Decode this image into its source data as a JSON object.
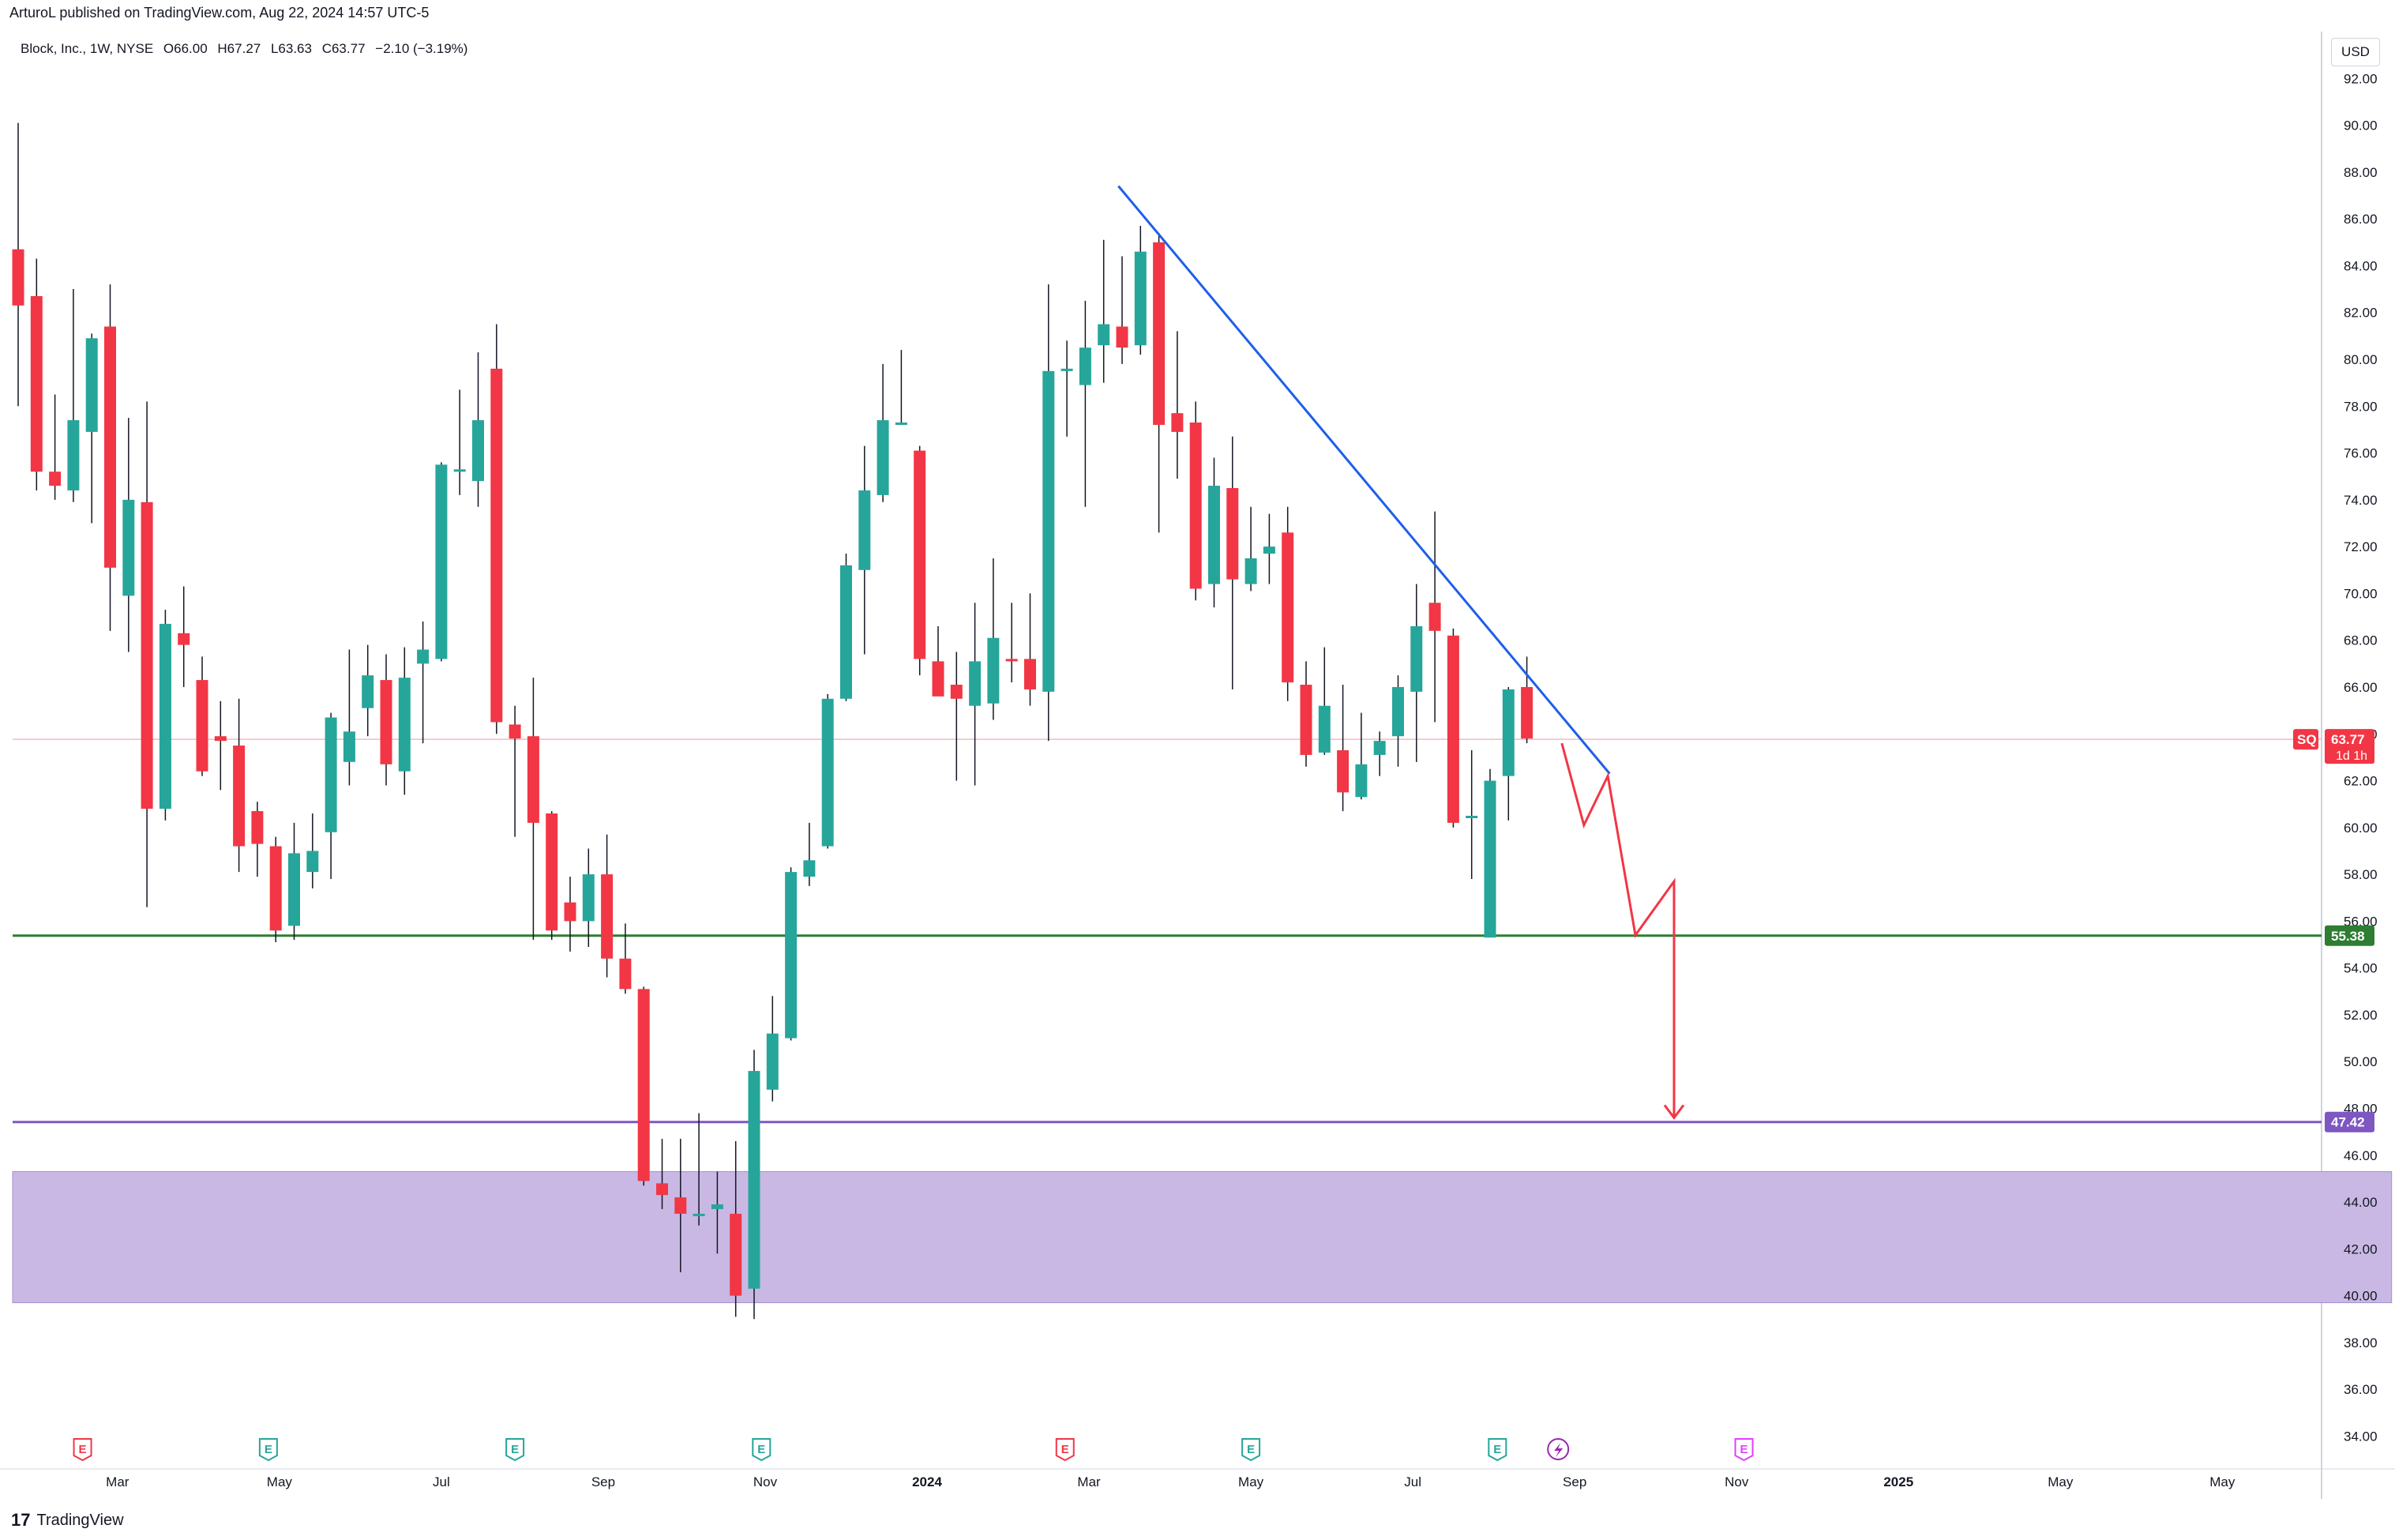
{
  "header": {
    "published": "ArturoL published on TradingView.com, Aug 22, 2024 14:57 UTC-5"
  },
  "legend": {
    "symbol": "Block, Inc., 1W, NYSE",
    "open": "O66.00",
    "high": "H67.27",
    "low": "L63.63",
    "close": "C63.77",
    "change": "−2.10 (−3.19%)"
  },
  "currency": "USD",
  "footer": {
    "logo": "17",
    "brand": "TradingView"
  },
  "chart_data": {
    "type": "candlestick",
    "interval": "1W",
    "ylim": [
      32.6,
      94.0
    ],
    "y_ticks": [
      "34.00",
      "36.00",
      "38.00",
      "40.00",
      "42.00",
      "44.00",
      "46.00",
      "48.00",
      "50.00",
      "52.00",
      "54.00",
      "56.00",
      "58.00",
      "60.00",
      "62.00",
      "64.00",
      "66.00",
      "68.00",
      "70.00",
      "72.00",
      "74.00",
      "76.00",
      "78.00",
      "80.00",
      "82.00",
      "84.00",
      "86.00",
      "88.00",
      "90.00",
      "92.00"
    ],
    "x_labels": [
      {
        "label": "Mar",
        "week": 5.4
      },
      {
        "label": "May",
        "week": 14.2
      },
      {
        "label": "Jul",
        "week": 23.0
      },
      {
        "label": "Sep",
        "week": 31.8
      },
      {
        "label": "Nov",
        "week": 40.6
      },
      {
        "label": "2024",
        "week": 49.4
      },
      {
        "label": "Mar",
        "week": 58.2
      },
      {
        "label": "May",
        "week": 67.0
      },
      {
        "label": "Jul",
        "week": 75.8
      },
      {
        "label": "Sep",
        "week": 84.6
      },
      {
        "label": "Nov",
        "week": 93.4
      },
      {
        "label": "2025",
        "week": 102.2
      },
      {
        "label": "May",
        "week": 111.0
      },
      {
        "label": "May",
        "week": 119.8
      }
    ],
    "candles": [
      [
        84.7,
        82.3,
        90.1,
        78.0
      ],
      [
        82.7,
        75.2,
        84.3,
        74.4
      ],
      [
        75.2,
        74.6,
        78.5,
        74.0
      ],
      [
        74.4,
        77.4,
        83.0,
        73.9
      ],
      [
        76.9,
        80.9,
        81.1,
        73.0
      ],
      [
        81.4,
        71.1,
        83.2,
        68.4
      ],
      [
        69.9,
        74.0,
        77.5,
        67.5
      ],
      [
        73.9,
        60.8,
        78.2,
        56.6
      ],
      [
        60.8,
        68.7,
        69.3,
        60.3
      ],
      [
        68.3,
        67.8,
        70.3,
        66.0
      ],
      [
        66.3,
        62.4,
        67.3,
        62.2
      ],
      [
        63.9,
        63.7,
        65.4,
        61.6
      ],
      [
        63.5,
        59.2,
        65.5,
        58.1
      ],
      [
        60.7,
        59.3,
        61.1,
        57.9
      ],
      [
        59.2,
        55.6,
        59.6,
        55.1
      ],
      [
        55.8,
        58.9,
        60.2,
        55.2
      ],
      [
        58.1,
        59.0,
        60.6,
        57.4
      ],
      [
        59.8,
        64.7,
        64.9,
        57.8
      ],
      [
        62.8,
        64.1,
        67.6,
        61.8
      ],
      [
        65.1,
        66.5,
        67.8,
        63.9
      ],
      [
        66.3,
        62.7,
        67.4,
        61.8
      ],
      [
        62.4,
        66.4,
        67.7,
        61.4
      ],
      [
        67.0,
        67.6,
        68.8,
        63.6
      ],
      [
        67.2,
        75.5,
        75.6,
        67.1
      ],
      [
        75.2,
        75.3,
        78.7,
        74.2
      ],
      [
        74.8,
        77.4,
        80.3,
        73.7
      ],
      [
        79.6,
        64.5,
        81.5,
        64.0
      ],
      [
        64.4,
        63.8,
        65.2,
        59.6
      ],
      [
        63.9,
        60.2,
        66.4,
        55.2
      ],
      [
        60.6,
        55.6,
        60.7,
        55.2
      ],
      [
        56.8,
        56.0,
        57.9,
        54.7
      ],
      [
        56.0,
        58.0,
        59.1,
        54.9
      ],
      [
        58.0,
        54.4,
        59.7,
        53.6
      ],
      [
        54.4,
        53.1,
        55.9,
        52.9
      ],
      [
        53.1,
        44.9,
        53.2,
        44.7
      ],
      [
        44.8,
        44.3,
        46.7,
        43.7
      ],
      [
        44.2,
        43.5,
        46.7,
        41.0
      ],
      [
        43.5,
        43.5,
        47.8,
        43.0
      ],
      [
        43.7,
        43.9,
        45.3,
        41.8
      ],
      [
        43.5,
        40.0,
        46.6,
        39.1
      ],
      [
        40.3,
        49.6,
        50.5,
        39.0
      ],
      [
        48.8,
        51.2,
        52.8,
        48.3
      ],
      [
        51.0,
        58.1,
        58.3,
        50.9
      ],
      [
        57.9,
        58.6,
        60.2,
        57.5
      ],
      [
        59.2,
        65.5,
        65.7,
        59.1
      ],
      [
        65.5,
        71.2,
        71.7,
        65.4
      ],
      [
        71.0,
        74.4,
        76.3,
        67.4
      ],
      [
        74.2,
        77.4,
        79.8,
        73.9
      ],
      [
        77.2,
        77.3,
        80.4,
        77.2
      ],
      [
        76.1,
        67.2,
        76.3,
        66.5
      ],
      [
        67.1,
        65.6,
        68.6,
        66.1
      ],
      [
        66.1,
        65.5,
        67.5,
        62.0
      ],
      [
        65.2,
        67.1,
        69.6,
        61.8
      ],
      [
        65.3,
        68.1,
        71.5,
        64.6
      ],
      [
        67.2,
        67.1,
        69.6,
        66.2
      ],
      [
        67.2,
        65.9,
        70.0,
        65.2
      ],
      [
        65.8,
        79.5,
        83.2,
        63.7
      ],
      [
        79.5,
        79.6,
        80.8,
        76.7
      ],
      [
        78.9,
        80.5,
        82.5,
        73.7
      ],
      [
        80.6,
        81.5,
        85.1,
        79.0
      ],
      [
        81.4,
        80.5,
        84.4,
        79.8
      ],
      [
        80.6,
        84.6,
        85.7,
        80.2
      ],
      [
        85.0,
        77.2,
        85.4,
        72.6
      ],
      [
        77.7,
        76.9,
        81.2,
        74.9
      ],
      [
        77.3,
        70.2,
        78.2,
        69.7
      ],
      [
        70.4,
        74.6,
        75.8,
        69.4
      ],
      [
        74.5,
        70.6,
        76.7,
        65.9
      ],
      [
        70.4,
        71.5,
        73.7,
        70.1
      ],
      [
        71.7,
        72.0,
        73.4,
        70.4
      ],
      [
        72.6,
        66.2,
        73.7,
        65.4
      ],
      [
        66.1,
        63.1,
        67.1,
        62.6
      ],
      [
        63.2,
        65.2,
        67.7,
        63.1
      ],
      [
        63.3,
        61.5,
        66.1,
        60.7
      ],
      [
        61.3,
        62.7,
        64.9,
        61.2
      ],
      [
        63.1,
        63.7,
        64.1,
        62.2
      ],
      [
        63.9,
        66.0,
        66.5,
        62.6
      ],
      [
        65.8,
        68.6,
        70.4,
        62.8
      ],
      [
        69.6,
        68.4,
        73.5,
        64.5
      ],
      [
        68.2,
        60.2,
        68.5,
        60.0
      ],
      [
        60.4,
        60.5,
        63.3,
        57.8
      ],
      [
        55.3,
        62.0,
        62.5,
        55.3
      ],
      [
        62.2,
        65.9,
        66.0,
        60.3
      ],
      [
        66.0,
        63.8,
        67.3,
        63.6
      ]
    ],
    "trendline": {
      "from": [
        59.8,
        87.4
      ],
      "to": [
        86.5,
        62.3
      ]
    },
    "projection_path": [
      [
        83.9,
        63.6
      ],
      [
        85.1,
        60.1
      ],
      [
        86.4,
        62.2
      ],
      [
        87.9,
        55.4
      ],
      [
        90.0,
        57.7
      ],
      [
        90.0,
        47.6
      ]
    ],
    "support_level": 55.38,
    "target_level": 47.42,
    "zone": {
      "from_week": 0.0,
      "to_week": 119.0,
      "low": 39.7,
      "high": 45.3
    },
    "last_price": {
      "symbol": "SQ",
      "value": "63.77",
      "countdown": "1d 1h"
    },
    "support_label": "55.38",
    "target_label": "47.42",
    "events": [
      {
        "letter": "E",
        "week": 3.5,
        "kind": "red"
      },
      {
        "letter": "E",
        "week": 13.6,
        "kind": "green"
      },
      {
        "letter": "E",
        "week": 27.0,
        "kind": "green"
      },
      {
        "letter": "E",
        "week": 40.4,
        "kind": "green"
      },
      {
        "letter": "E",
        "week": 56.9,
        "kind": "red"
      },
      {
        "letter": "E",
        "week": 67.0,
        "kind": "green"
      },
      {
        "letter": "E",
        "week": 80.4,
        "kind": "green"
      },
      {
        "letter": "E",
        "week": 93.8,
        "kind": "magenta"
      }
    ],
    "dividend_icon_week": 83.7,
    "colors": {
      "up": "#26a69a",
      "down": "#f23645",
      "trend": "#1f5fe8",
      "projection": "#f23645",
      "support": "#2e7d32",
      "target": "#7e57c2",
      "zone": "#c9b8e4"
    }
  }
}
